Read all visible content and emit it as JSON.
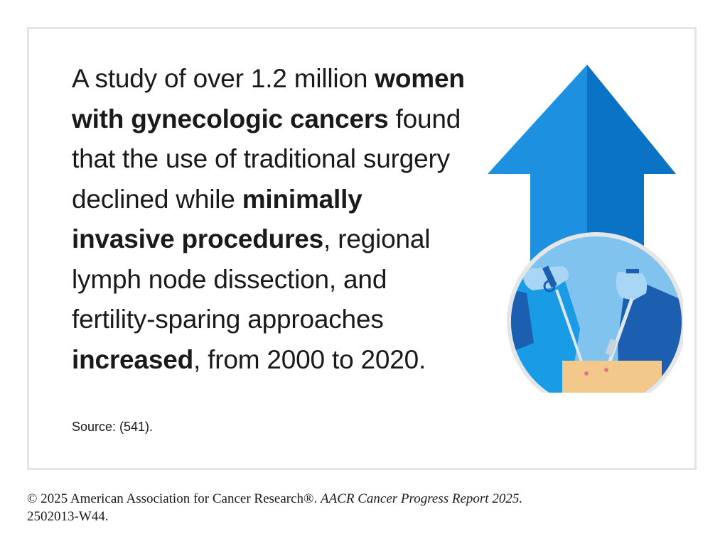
{
  "statement": {
    "seg1": "A study of over 1.2 million ",
    "seg2_bold": "women with gynecologic cancers",
    "seg3": " found that the use of traditional surgery declined while ",
    "seg4_bold": "minimally invasive procedures",
    "seg5": ", regional lymph node dissection, and fertility-sparing approaches ",
    "seg6_bold": "increased",
    "seg7": ", from 2000 to 2020."
  },
  "source": "Source: (541).",
  "illustration": {
    "icon": "upward-arrow-with-surgery-icon",
    "colors": {
      "arrow_light": "#1e90e0",
      "arrow_dark": "#0b73c6",
      "circle_bg": "#7fc3ee",
      "circle_ring": "#e6e6e6",
      "patient_skin": "#f3c98b",
      "surgeon_dark": "#1c5fb0",
      "glove": "#a9d6f5"
    }
  },
  "footer": {
    "copyright": "© 2025 American Association for Cancer Research®. ",
    "report": "AACR Cancer Progress Report 2025.",
    "code": "2502013-W44."
  }
}
